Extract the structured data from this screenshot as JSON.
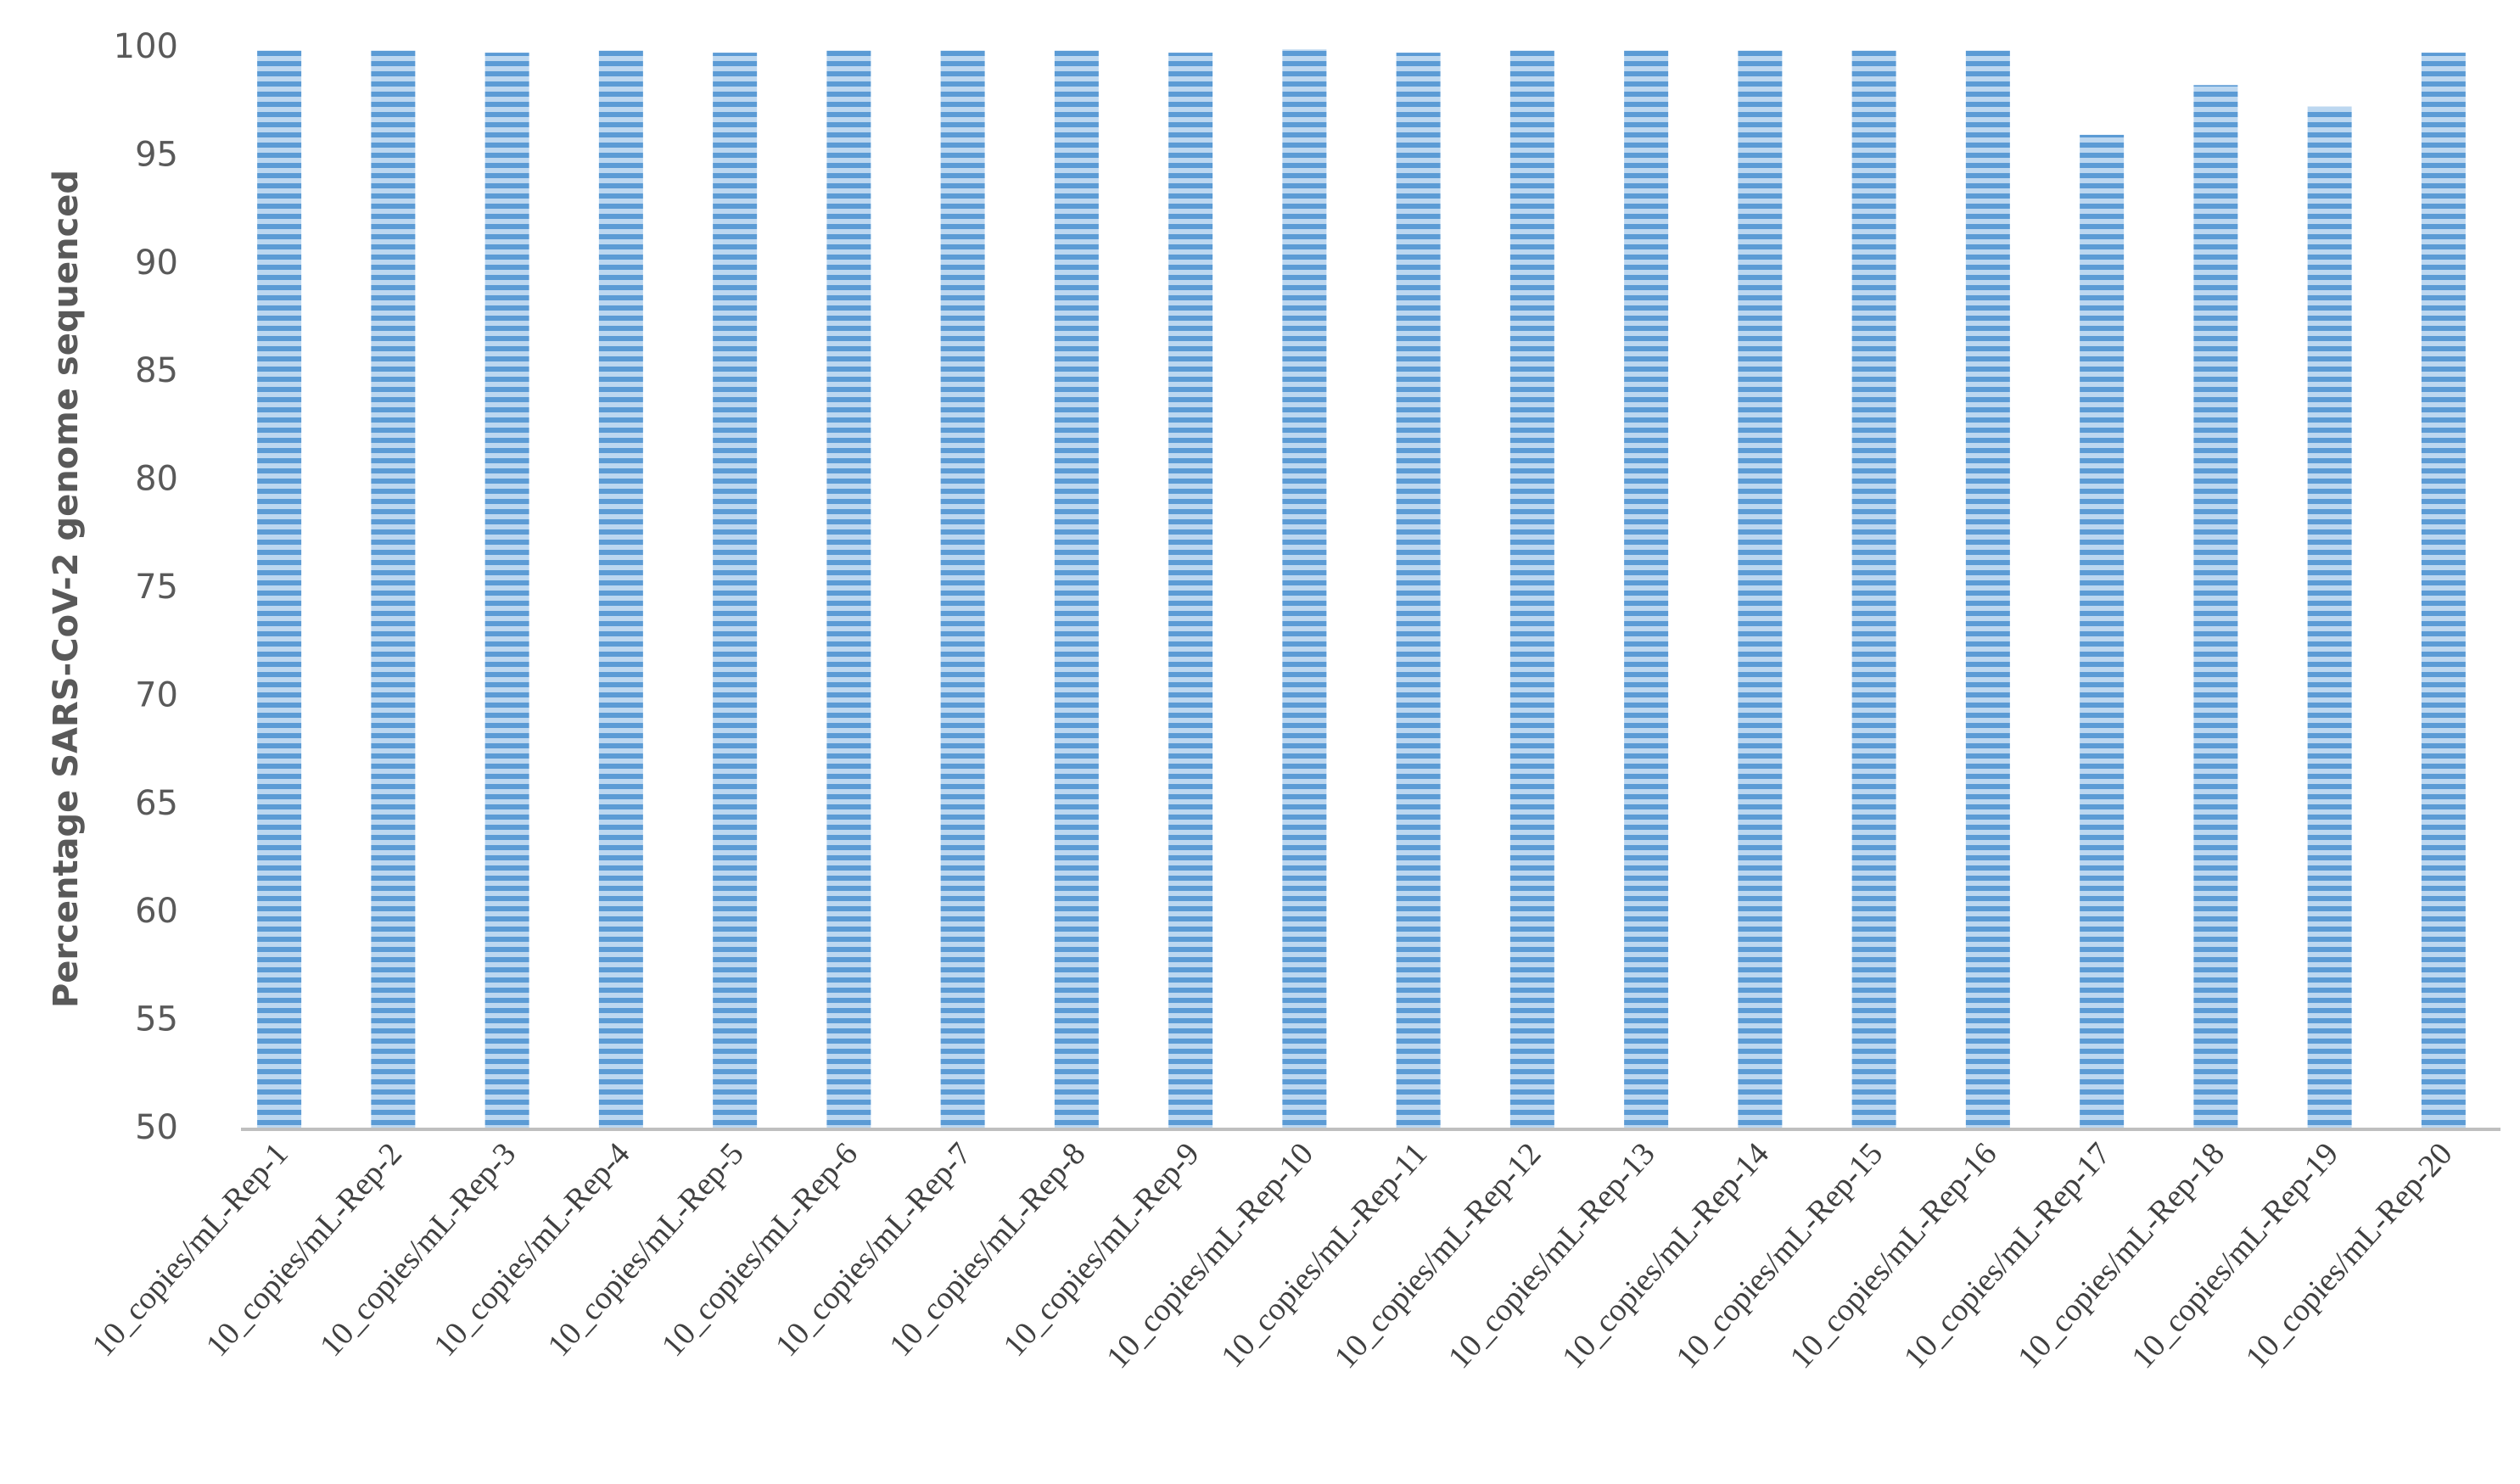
{
  "chart_data": {
    "type": "bar",
    "y_label": "Percentage SARS-CoV-2 genome sequenced",
    "categories": [
      "10_copies/mL-Rep-1",
      "10_copies/mL-Rep-2",
      "10_copies/mL-Rep-3",
      "10_copies/mL-Rep-4",
      "10_copies/mL-Rep-5",
      "10_copies/mL-Rep-6",
      "10_copies/mL-Rep-7",
      "10_copies/mL-Rep-8",
      "10_copies/mL-Rep-9",
      "10_copies/mL-Rep-10",
      "10_copies/mL-Rep-11",
      "10_copies/mL-Rep-12",
      "10_copies/mL-Rep-13",
      "10_copies/mL-Rep-14",
      "10_copies/mL-Rep-15",
      "10_copies/mL-Rep-16",
      "10_copies/mL-Rep-17",
      "10_copies/mL-Rep-18",
      "10_copies/mL-Rep-19",
      "10_copies/mL-Rep-20"
    ],
    "values": [
      99.9,
      99.9,
      99.8,
      99.9,
      99.8,
      99.9,
      99.9,
      99.9,
      99.8,
      99.95,
      99.8,
      99.9,
      99.9,
      99.9,
      99.9,
      99.9,
      96,
      98.3,
      97.3,
      99.8
    ],
    "color": "#5b9bd5",
    "ylim": [
      50,
      100
    ],
    "yticks": [
      50,
      55,
      60,
      65,
      70,
      75,
      80,
      85,
      90,
      95,
      100
    ],
    "grid": false
  }
}
